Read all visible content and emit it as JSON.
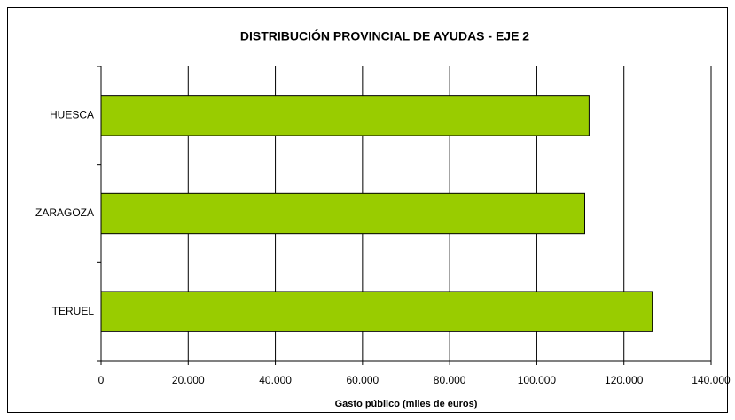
{
  "chart_data": {
    "type": "hbar",
    "title": "DISTRIBUCIÓN PROVINCIAL DE AYUDAS - EJE 2",
    "x_label": "Gasto público (miles de euros)",
    "categories": [
      "HUESCA",
      "ZARAGOZA",
      "TERUEL"
    ],
    "values": [
      112000,
      111000,
      126500
    ],
    "color": "#99cc00",
    "xlim": [
      0,
      140000
    ],
    "xticks": [
      0,
      {
        "value": 20000,
        "label": "20.000"
      },
      {
        "value": 40000,
        "label": "40.000"
      },
      {
        "value": 60000,
        "label": "60.000"
      },
      {
        "value": 80000,
        "label": "80.000"
      },
      {
        "value": 100000,
        "label": "100.000"
      },
      {
        "value": 120000,
        "label": "120.000"
      },
      {
        "value": 140000,
        "label": "140.000"
      }
    ],
    "grid": true
  }
}
